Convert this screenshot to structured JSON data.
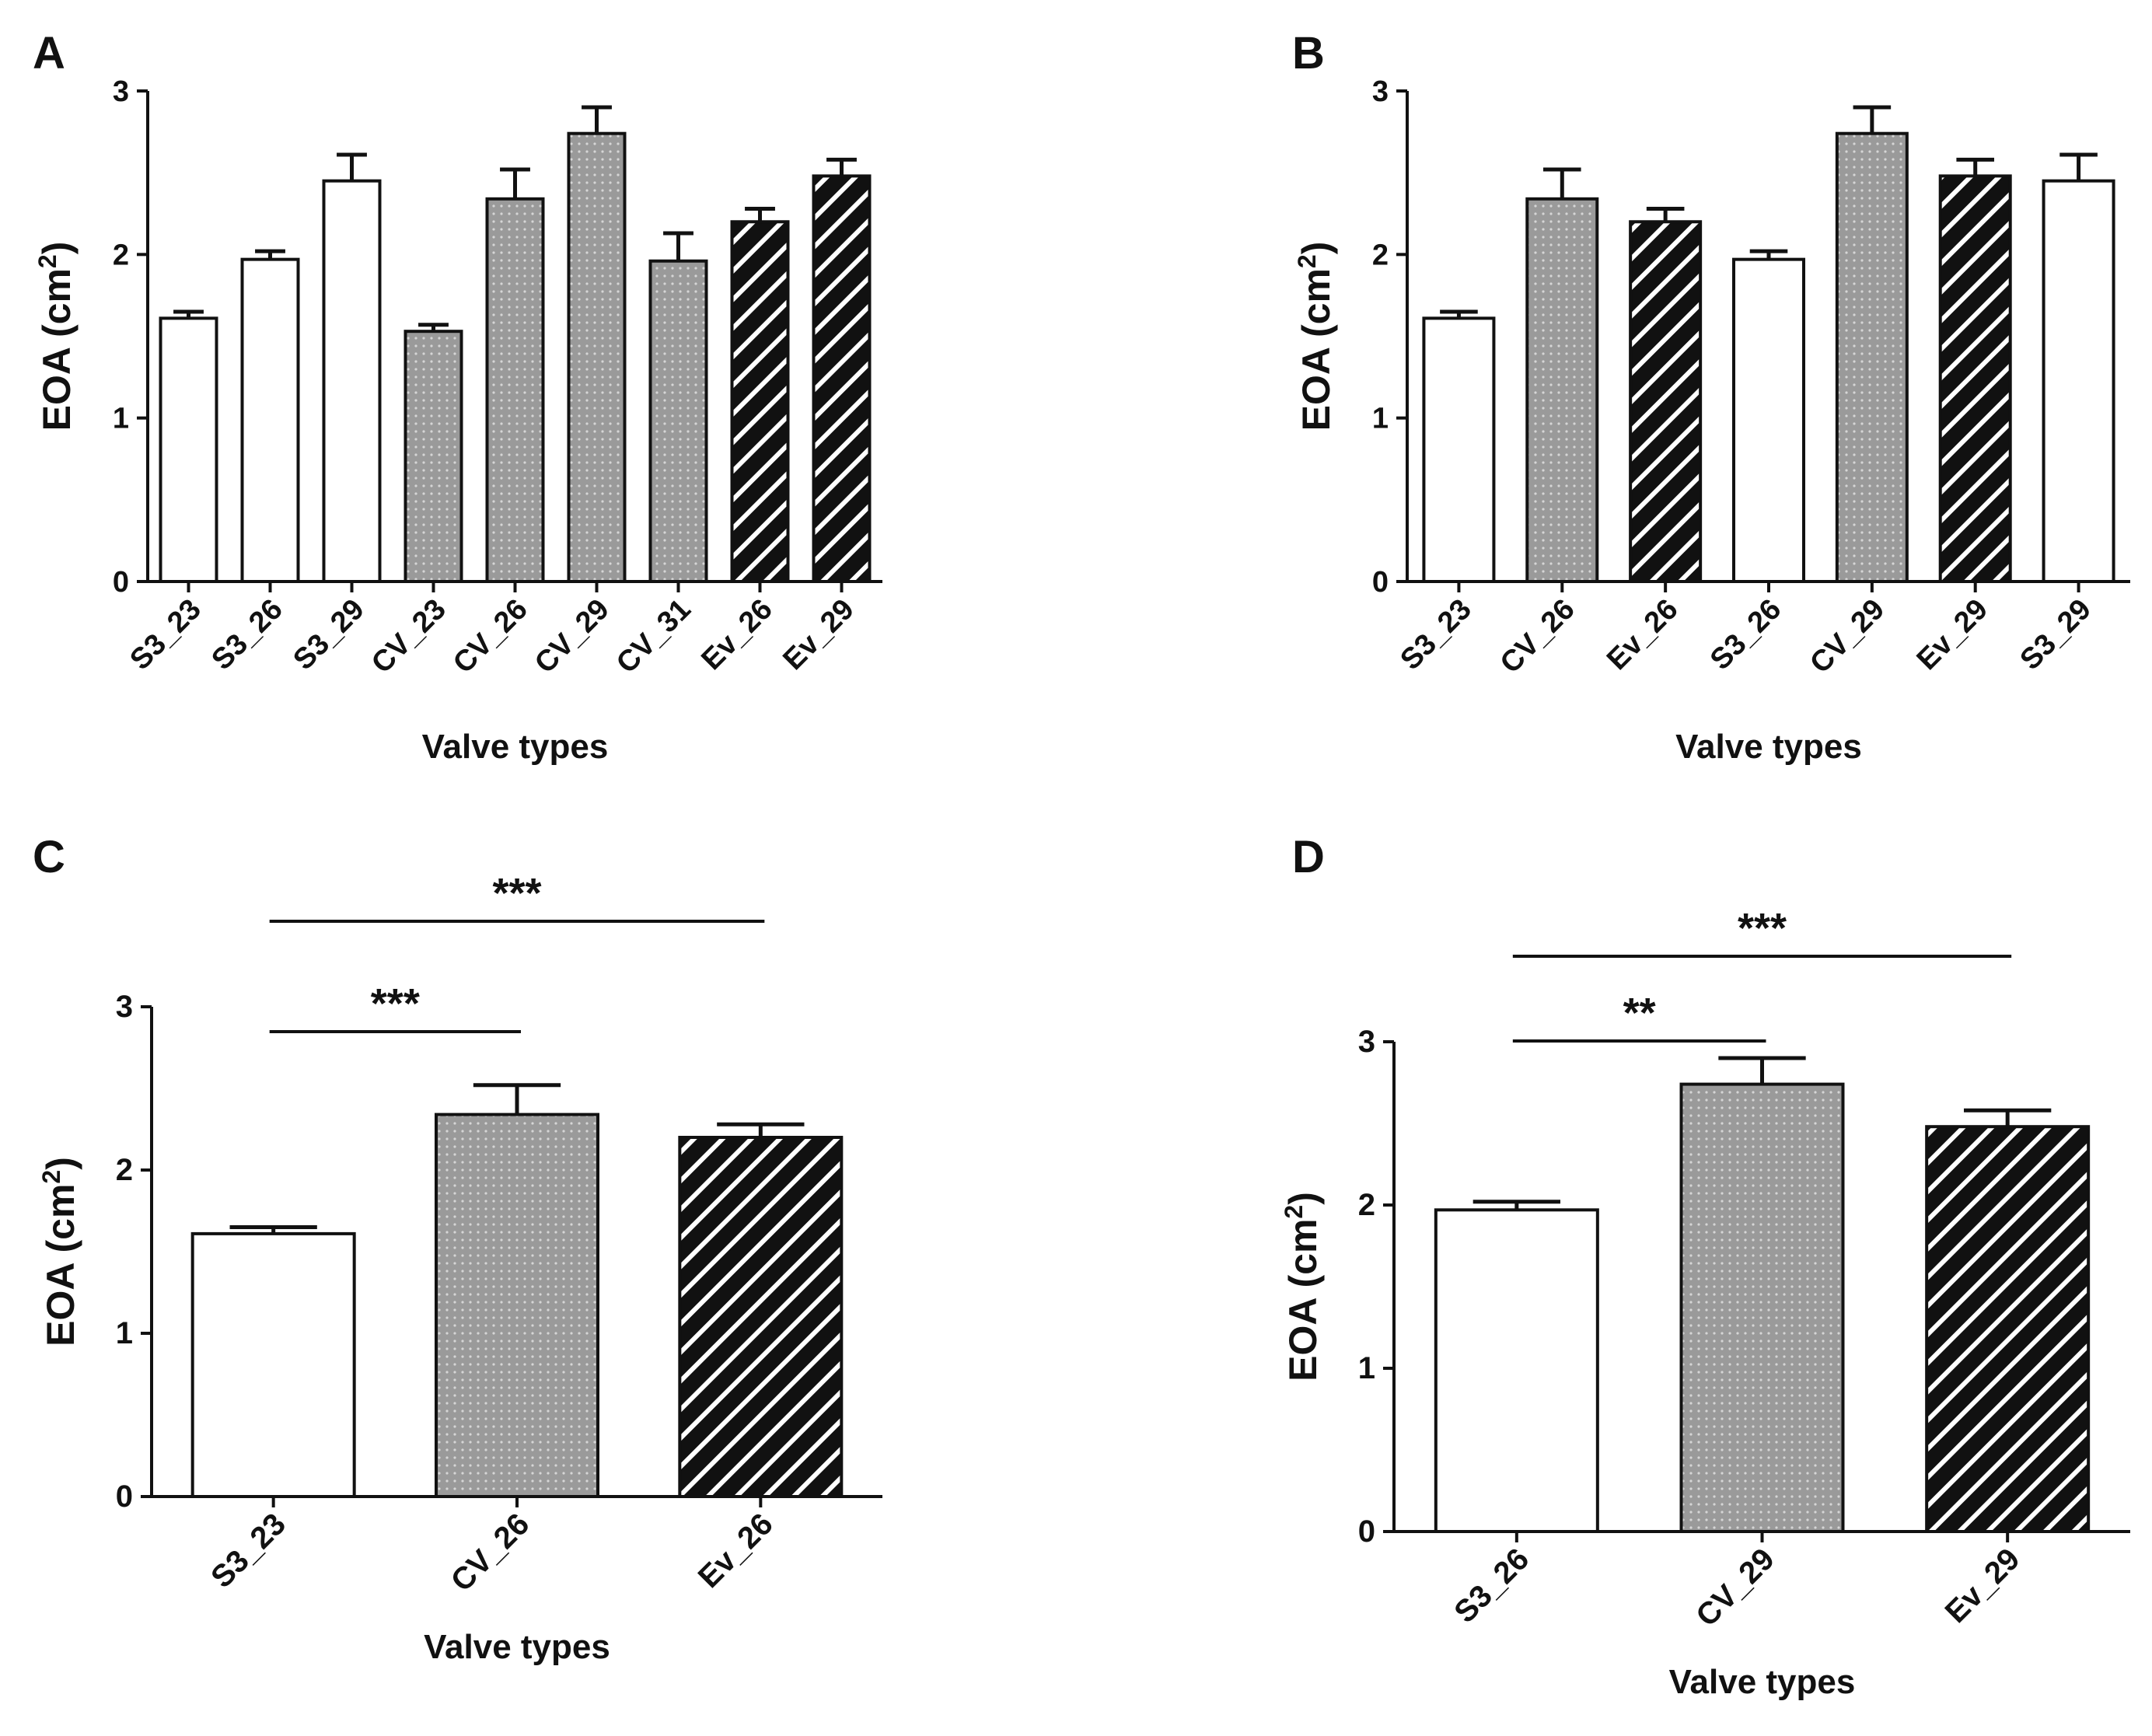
{
  "figure": {
    "colors": {
      "open": "#ffffff",
      "dotted": "#9a9a9a",
      "dot": "#d6d6d6",
      "hatched": "#111111",
      "hatch_line": "#ffffff",
      "ink": "#111111"
    }
  },
  "chart_data": [
    {
      "panel_label": "A",
      "type": "bar",
      "categories": [
        "S3_23",
        "S3_26",
        "S3_29",
        "CV_23",
        "CV_26",
        "CV_29",
        "CV_31",
        "Ev_26",
        "Ev_29"
      ],
      "values": [
        1.61,
        1.97,
        2.45,
        1.53,
        2.34,
        2.74,
        1.96,
        2.2,
        2.48
      ],
      "errors": [
        0.04,
        0.05,
        0.16,
        0.04,
        0.18,
        0.16,
        0.17,
        0.08,
        0.1
      ],
      "fills": [
        "open",
        "open",
        "open",
        "dotted",
        "dotted",
        "dotted",
        "dotted",
        "hatched",
        "hatched"
      ],
      "xlabel": "Valve types",
      "ylabel": "EOA (cm",
      "ylabel_sup": "2",
      "ylabel_end": ")",
      "ylim": [
        0,
        3
      ],
      "yticks": [
        "0",
        "1",
        "2",
        "3"
      ],
      "significance": []
    },
    {
      "panel_label": "B",
      "type": "bar",
      "categories": [
        "S3_23",
        "CV_26",
        "Ev_26",
        "S3_26",
        "CV_29",
        "Ev_29",
        "S3_29"
      ],
      "values": [
        1.61,
        2.34,
        2.2,
        1.97,
        2.74,
        2.48,
        2.45
      ],
      "errors": [
        0.04,
        0.18,
        0.08,
        0.05,
        0.16,
        0.1,
        0.16
      ],
      "fills": [
        "open",
        "dotted",
        "hatched",
        "open",
        "dotted",
        "hatched",
        "open"
      ],
      "xlabel": "Valve types",
      "ylabel": "EOA (cm",
      "ylabel_sup": "2",
      "ylabel_end": ")",
      "ylim": [
        0,
        3
      ],
      "yticks": [
        "0",
        "1",
        "2",
        "3"
      ],
      "significance": []
    },
    {
      "panel_label": "C",
      "type": "bar",
      "categories": [
        "S3_23",
        "CV_26",
        "Ev_26"
      ],
      "values": [
        1.61,
        2.34,
        2.2
      ],
      "errors": [
        0.04,
        0.18,
        0.08
      ],
      "fills": [
        "open",
        "dotted",
        "hatched"
      ],
      "xlabel": "Valve types",
      "ylabel": "EOA (cm",
      "ylabel_sup": "2",
      "ylabel_end": ")",
      "ylim": [
        0,
        3
      ],
      "yticks": [
        "0",
        "1",
        "2",
        "3"
      ],
      "significance": [
        {
          "from": "S3_23",
          "to": "CV_26",
          "label": "***",
          "level": 1
        },
        {
          "from": "S3_23",
          "to": "Ev_26",
          "label": "***",
          "level": 2
        }
      ]
    },
    {
      "panel_label": "D",
      "type": "bar",
      "categories": [
        "S3_26",
        "CV_29",
        "Ev_29"
      ],
      "values": [
        1.97,
        2.74,
        2.48
      ],
      "errors": [
        0.05,
        0.16,
        0.1
      ],
      "fills": [
        "open",
        "dotted",
        "hatched"
      ],
      "xlabel": "Valve types",
      "ylabel": "EOA (cm",
      "ylabel_sup": "2",
      "ylabel_end": ")",
      "ylim": [
        0,
        3
      ],
      "yticks": [
        "0",
        "1",
        "2",
        "3"
      ],
      "significance": [
        {
          "from": "S3_26",
          "to": "CV_29",
          "label": "**",
          "level": 1
        },
        {
          "from": "S3_26",
          "to": "Ev_29",
          "label": "***",
          "level": 2
        }
      ]
    }
  ]
}
